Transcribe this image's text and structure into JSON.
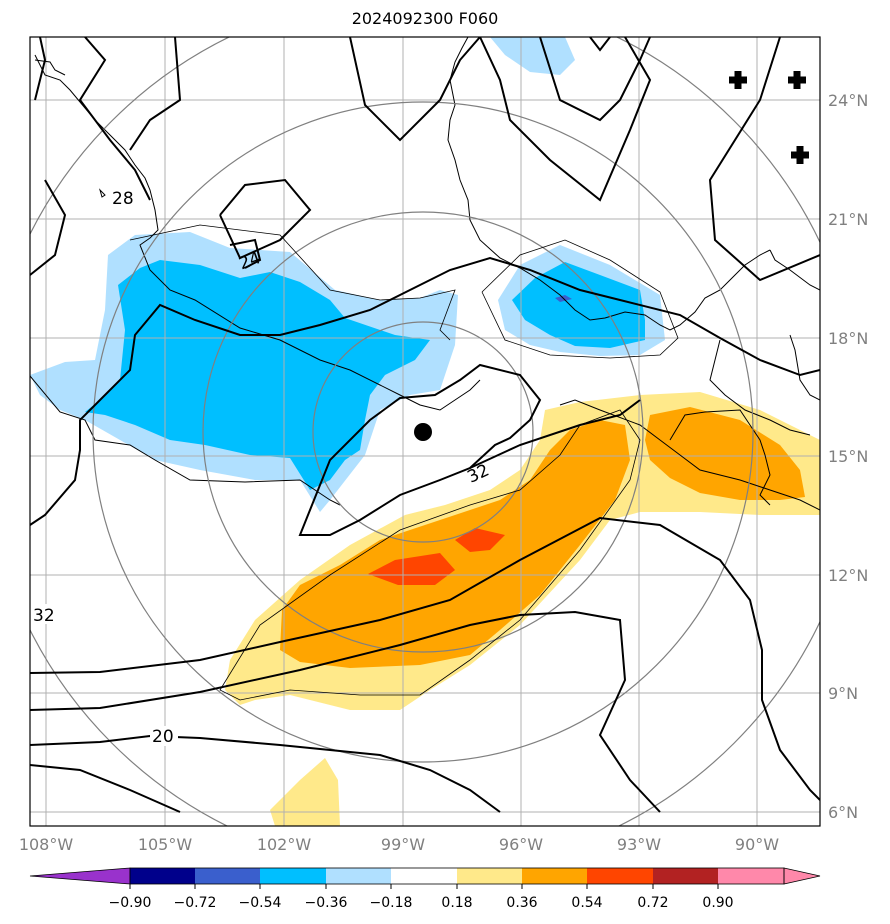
{
  "map": {
    "title": "2024092300 F060",
    "lat_labels": [
      "24°N",
      "21°N",
      "18°N",
      "15°N",
      "12°N",
      "9°N",
      "6°N"
    ],
    "lon_labels": [
      "108°W",
      "105°W",
      "102°W",
      "99°W",
      "96°W",
      "93°W",
      "90°W"
    ],
    "contour_labels": [
      "28",
      "24",
      "32",
      "32",
      "20"
    ],
    "colors": {
      "neg_strong": "#00bfff",
      "neg_weak": "#b0e0ff",
      "pos_weak": "#ffe98a",
      "pos_mid": "#ffa500",
      "pos_strong": "#ff4500",
      "grid": "#b0b0b0",
      "range_rings": "#808080"
    },
    "storm_center_marker": "filled-circle",
    "markers": [
      "plus-icon",
      "plus-icon",
      "plus-icon"
    ]
  },
  "colorbar": {
    "labels": [
      "−0.90",
      "−0.72",
      "−0.54",
      "−0.36",
      "−0.18",
      "0.18",
      "0.36",
      "0.54",
      "0.72",
      "0.90"
    ],
    "colors": [
      "#9932cc",
      "#00008b",
      "#3a5fcd",
      "#00bfff",
      "#b0e0ff",
      "#ffffff",
      "#ffe98a",
      "#ffa500",
      "#ff4500",
      "#b22222",
      "#ff88aa",
      "#ff88aa"
    ]
  }
}
